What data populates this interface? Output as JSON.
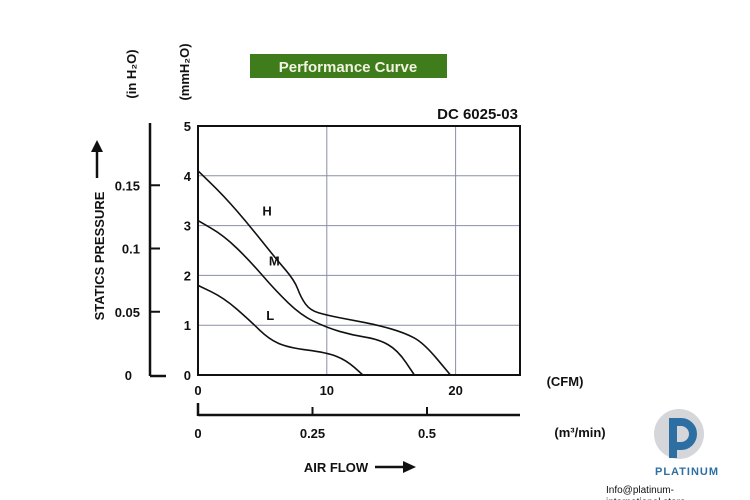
{
  "chart_data": {
    "type": "line",
    "title": "Performance Curve",
    "model": "DC 6025-03",
    "title_bg": "#3f7d1c",
    "xlabel": "AIR FLOW",
    "ylabel": "STATICS PRESSURE",
    "x_unit": "(CFM)",
    "x2_unit": "(m³/min)",
    "y_unit": "(mmH₂O)",
    "y2_unit": "(in H₂O)",
    "xlim": [
      0,
      25
    ],
    "ylim": [
      0,
      5
    ],
    "x_ticks": [
      0,
      10,
      20
    ],
    "y_ticks": [
      0,
      1,
      2,
      3,
      4,
      5
    ],
    "x2_ticks": [
      0,
      0.25,
      0.5
    ],
    "x2_tick_labels": [
      "0",
      "0.25",
      "0.5"
    ],
    "y2_ticks": [
      0,
      0.05,
      0.1,
      0.15
    ],
    "y2_tick_labels": [
      "0",
      "0.05",
      "0.1",
      "0.15"
    ],
    "grid": true,
    "series": [
      {
        "name": "H",
        "label_at": [
          5,
          3.2
        ],
        "points": [
          [
            0,
            4.1
          ],
          [
            2,
            3.6
          ],
          [
            4,
            3.0
          ],
          [
            6,
            2.35
          ],
          [
            7.5,
            1.9
          ],
          [
            8,
            1.55
          ],
          [
            8.7,
            1.3
          ],
          [
            10,
            1.2
          ],
          [
            12,
            1.1
          ],
          [
            14,
            1.0
          ],
          [
            16,
            0.85
          ],
          [
            17.5,
            0.65
          ],
          [
            19.6,
            0
          ]
        ]
      },
      {
        "name": "M",
        "label_at": [
          5.5,
          2.2
        ],
        "points": [
          [
            0,
            3.1
          ],
          [
            2,
            2.8
          ],
          [
            4,
            2.3
          ],
          [
            6,
            1.7
          ],
          [
            8,
            1.2
          ],
          [
            10,
            0.95
          ],
          [
            12,
            0.8
          ],
          [
            14,
            0.72
          ],
          [
            15.5,
            0.5
          ],
          [
            16.8,
            0
          ]
        ]
      },
      {
        "name": "L",
        "label_at": [
          5.3,
          1.1
        ],
        "points": [
          [
            0,
            1.8
          ],
          [
            2,
            1.55
          ],
          [
            4,
            1.1
          ],
          [
            5.5,
            0.72
          ],
          [
            7,
            0.55
          ],
          [
            10,
            0.45
          ],
          [
            11.5,
            0.3
          ],
          [
            12.8,
            0
          ]
        ]
      }
    ]
  },
  "branding": {
    "logo_name": "PLATINUM",
    "email": "Info@platinum-international.store"
  }
}
